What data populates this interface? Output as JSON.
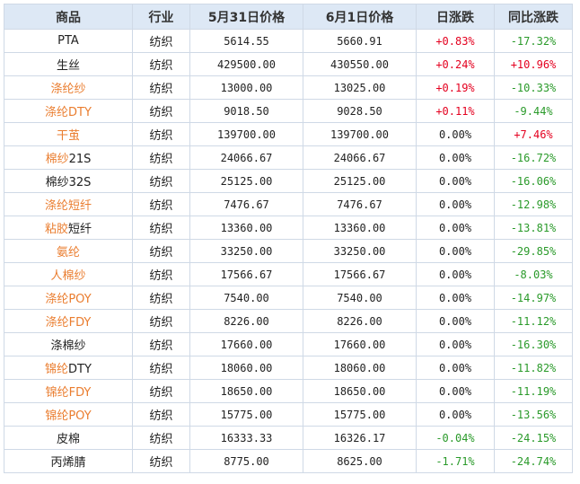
{
  "colors": {
    "header_bg": "#dde8f5",
    "border": "#cfd9e6",
    "link_orange": "#ea7d2f",
    "up_red": "#e4001f",
    "down_green": "#2a9a2a"
  },
  "headers": [
    "商品",
    "行业",
    "5月31日价格",
    "6月1日价格",
    "日涨跌",
    "同比涨跌"
  ],
  "rows": [
    {
      "name_parts": [
        {
          "t": "PTA",
          "o": false
        }
      ],
      "industry": "纺织",
      "p1": "5614.55",
      "p2": "5660.91",
      "day": "+0.83%",
      "dayc": "pos",
      "yoy": "-17.32%",
      "yoyc": "neg"
    },
    {
      "name_parts": [
        {
          "t": "生丝",
          "o": false
        }
      ],
      "industry": "纺织",
      "p1": "429500.00",
      "p2": "430550.00",
      "day": "+0.24%",
      "dayc": "pos",
      "yoy": "+10.96%",
      "yoyc": "pos"
    },
    {
      "name_parts": [
        {
          "t": "涤纶纱",
          "o": true
        }
      ],
      "industry": "纺织",
      "p1": "13000.00",
      "p2": "13025.00",
      "day": "+0.19%",
      "dayc": "pos",
      "yoy": "-10.33%",
      "yoyc": "neg"
    },
    {
      "name_parts": [
        {
          "t": "涤纶DTY",
          "o": true
        }
      ],
      "industry": "纺织",
      "p1": "9018.50",
      "p2": "9028.50",
      "day": "+0.11%",
      "dayc": "pos",
      "yoy": "-9.44%",
      "yoyc": "neg"
    },
    {
      "name_parts": [
        {
          "t": "干茧",
          "o": true
        }
      ],
      "industry": "纺织",
      "p1": "139700.00",
      "p2": "139700.00",
      "day": "0.00%",
      "dayc": "flat",
      "yoy": "+7.46%",
      "yoyc": "pos"
    },
    {
      "name_parts": [
        {
          "t": "棉纱",
          "o": true
        },
        {
          "t": "21S",
          "o": false
        }
      ],
      "industry": "纺织",
      "p1": "24066.67",
      "p2": "24066.67",
      "day": "0.00%",
      "dayc": "flat",
      "yoy": "-16.72%",
      "yoyc": "neg"
    },
    {
      "name_parts": [
        {
          "t": "棉纱32S",
          "o": false
        }
      ],
      "industry": "纺织",
      "p1": "25125.00",
      "p2": "25125.00",
      "day": "0.00%",
      "dayc": "flat",
      "yoy": "-16.06%",
      "yoyc": "neg"
    },
    {
      "name_parts": [
        {
          "t": "涤纶短纤",
          "o": true
        }
      ],
      "industry": "纺织",
      "p1": "7476.67",
      "p2": "7476.67",
      "day": "0.00%",
      "dayc": "flat",
      "yoy": "-12.98%",
      "yoyc": "neg"
    },
    {
      "name_parts": [
        {
          "t": "粘胶",
          "o": true
        },
        {
          "t": "短纤",
          "o": false
        }
      ],
      "industry": "纺织",
      "p1": "13360.00",
      "p2": "13360.00",
      "day": "0.00%",
      "dayc": "flat",
      "yoy": "-13.81%",
      "yoyc": "neg"
    },
    {
      "name_parts": [
        {
          "t": "氨纶",
          "o": true
        }
      ],
      "industry": "纺织",
      "p1": "33250.00",
      "p2": "33250.00",
      "day": "0.00%",
      "dayc": "flat",
      "yoy": "-29.85%",
      "yoyc": "neg"
    },
    {
      "name_parts": [
        {
          "t": "人棉纱",
          "o": true
        }
      ],
      "industry": "纺织",
      "p1": "17566.67",
      "p2": "17566.67",
      "day": "0.00%",
      "dayc": "flat",
      "yoy": "-8.03%",
      "yoyc": "neg"
    },
    {
      "name_parts": [
        {
          "t": "涤纶POY",
          "o": true
        }
      ],
      "industry": "纺织",
      "p1": "7540.00",
      "p2": "7540.00",
      "day": "0.00%",
      "dayc": "flat",
      "yoy": "-14.97%",
      "yoyc": "neg"
    },
    {
      "name_parts": [
        {
          "t": "涤纶FDY",
          "o": true
        }
      ],
      "industry": "纺织",
      "p1": "8226.00",
      "p2": "8226.00",
      "day": "0.00%",
      "dayc": "flat",
      "yoy": "-11.12%",
      "yoyc": "neg"
    },
    {
      "name_parts": [
        {
          "t": "涤棉纱",
          "o": false
        }
      ],
      "industry": "纺织",
      "p1": "17660.00",
      "p2": "17660.00",
      "day": "0.00%",
      "dayc": "flat",
      "yoy": "-16.30%",
      "yoyc": "neg"
    },
    {
      "name_parts": [
        {
          "t": "锦纶",
          "o": true
        },
        {
          "t": "DTY",
          "o": false
        }
      ],
      "industry": "纺织",
      "p1": "18060.00",
      "p2": "18060.00",
      "day": "0.00%",
      "dayc": "flat",
      "yoy": "-11.82%",
      "yoyc": "neg"
    },
    {
      "name_parts": [
        {
          "t": "锦纶FDY",
          "o": true
        }
      ],
      "industry": "纺织",
      "p1": "18650.00",
      "p2": "18650.00",
      "day": "0.00%",
      "dayc": "flat",
      "yoy": "-11.19%",
      "yoyc": "neg"
    },
    {
      "name_parts": [
        {
          "t": "锦纶POY",
          "o": true
        }
      ],
      "industry": "纺织",
      "p1": "15775.00",
      "p2": "15775.00",
      "day": "0.00%",
      "dayc": "flat",
      "yoy": "-13.56%",
      "yoyc": "neg"
    },
    {
      "name_parts": [
        {
          "t": "皮棉",
          "o": false
        }
      ],
      "industry": "纺织",
      "p1": "16333.33",
      "p2": "16326.17",
      "day": "-0.04%",
      "dayc": "neg",
      "yoy": "-24.15%",
      "yoyc": "neg"
    },
    {
      "name_parts": [
        {
          "t": "丙烯腈",
          "o": false
        }
      ],
      "industry": "纺织",
      "p1": "8775.00",
      "p2": "8625.00",
      "day": "-1.71%",
      "dayc": "neg",
      "yoy": "-24.74%",
      "yoyc": "neg"
    }
  ]
}
